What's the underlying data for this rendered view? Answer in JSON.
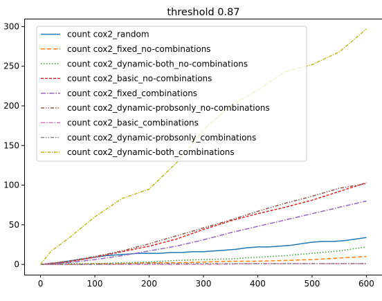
{
  "chart_data": {
    "type": "line",
    "title": "threshold 0.87",
    "xlabel": "",
    "ylabel": "",
    "xlim": [
      -30,
      630
    ],
    "ylim": [
      -13,
      310
    ],
    "xticks": [
      0,
      100,
      200,
      300,
      400,
      500,
      600
    ],
    "yticks": [
      0,
      50,
      100,
      150,
      200,
      250,
      300
    ],
    "grid": false,
    "legend_position": "top-left",
    "series": [
      {
        "name": "count cox2_random",
        "color": "#1f77b4",
        "dash": "solid",
        "x": [
          0,
          20,
          40,
          60,
          80,
          100,
          120,
          140,
          160,
          180,
          200,
          220,
          240,
          260,
          280,
          300,
          320,
          340,
          360,
          380,
          400,
          420,
          440,
          460,
          480,
          500,
          520,
          540,
          560,
          580,
          600
        ],
        "y": [
          0,
          1,
          3,
          5,
          7,
          9,
          11,
          12,
          13,
          14,
          14,
          14,
          15,
          15,
          16,
          16,
          17,
          18,
          19,
          21,
          22,
          22,
          23,
          24,
          26,
          28,
          29,
          29,
          30,
          32,
          34
        ]
      },
      {
        "name": "count cox2_fixed_no-combinations",
        "color": "#ff7f0e",
        "dash": "6,3",
        "x": [
          0,
          50,
          100,
          150,
          200,
          250,
          300,
          350,
          400,
          450,
          500,
          550,
          600
        ],
        "y": [
          0,
          0,
          1,
          1,
          2,
          2,
          3,
          4,
          4,
          5,
          6,
          8,
          10
        ]
      },
      {
        "name": "count cox2_dynamic-both_no-combinations",
        "color": "#2ca02c",
        "dash": "1.5,2.5",
        "x": [
          0,
          50,
          100,
          150,
          200,
          250,
          300,
          350,
          400,
          450,
          500,
          550,
          600
        ],
        "y": [
          0,
          1,
          1,
          2,
          3,
          5,
          6,
          7,
          9,
          11,
          14,
          17,
          22
        ]
      },
      {
        "name": "count cox2_basic_no-combinations",
        "color": "#d62728",
        "dash": "4,2",
        "x": [
          0,
          50,
          100,
          150,
          200,
          250,
          300,
          350,
          400,
          450,
          500,
          550,
          600
        ],
        "y": [
          0,
          3,
          9,
          16,
          23,
          32,
          44,
          55,
          64,
          72,
          81,
          92,
          103
        ]
      },
      {
        "name": "count cox2_fixed_combinations",
        "color": "#9467bd",
        "dash": "7,2,1.5,2",
        "x": [
          0,
          50,
          100,
          150,
          200,
          250,
          300,
          350,
          400,
          450,
          500,
          550,
          600
        ],
        "y": [
          0,
          2,
          6,
          11,
          17,
          23,
          31,
          40,
          48,
          56,
          64,
          72,
          80
        ]
      },
      {
        "name": "count cox2_dynamic-probsonly_no-combinations",
        "color": "#8c564b",
        "dash": "5,2,1.5,2,1.5,2",
        "x": [
          0,
          50,
          100,
          150,
          200,
          250,
          300,
          350,
          400,
          450,
          500,
          550,
          600
        ],
        "y": [
          0,
          4,
          10,
          17,
          26,
          36,
          46,
          56,
          67,
          77,
          86,
          96,
          102
        ]
      },
      {
        "name": "count cox2_basic_combinations",
        "color": "#e377c2",
        "dash": "6,2,1.5,2",
        "x": [
          0,
          100,
          200,
          300,
          400,
          500,
          600
        ],
        "y": [
          0,
          0,
          0,
          0,
          1,
          1,
          1
        ]
      },
      {
        "name": "count cox2_dynamic-probsonly_combinations",
        "color": "#7f7f7f",
        "dash": "5,2,1.5,2,1.5,2",
        "x": [
          0,
          100,
          200,
          300,
          400,
          500,
          600
        ],
        "y": [
          0,
          0,
          1,
          1,
          1,
          1,
          1
        ]
      },
      {
        "name": "count cox2_dynamic-both_combinations",
        "color": "#bcbd22",
        "dash": "5,1.5,1.5,1.5",
        "x": [
          0,
          20,
          50,
          100,
          150,
          200,
          250,
          280,
          300,
          350,
          400,
          450,
          500,
          550,
          600
        ],
        "y": [
          0,
          17,
          32,
          60,
          83,
          95,
          128,
          152,
          170,
          200,
          220,
          243,
          252,
          268,
          297
        ]
      }
    ]
  }
}
